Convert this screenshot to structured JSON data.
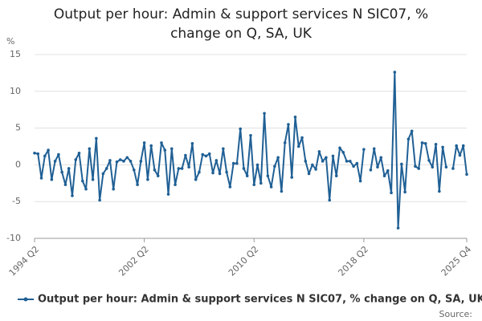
{
  "chart_data": {
    "type": "line",
    "title": "Output per hour: Admin & support services N SIC07, % change on Q, SA, UK",
    "y_label": "%",
    "source": "Source:",
    "categories": [
      "1994 Q2",
      null,
      null,
      null,
      null,
      null,
      null,
      null,
      null,
      null,
      null,
      null,
      null,
      null,
      null,
      null,
      null,
      null,
      null,
      null,
      null,
      null,
      null,
      null,
      null,
      null,
      null,
      null,
      null,
      null,
      null,
      null,
      "2002 Q2",
      null,
      null,
      null,
      null,
      null,
      null,
      null,
      null,
      null,
      null,
      null,
      null,
      null,
      null,
      null,
      null,
      null,
      null,
      null,
      null,
      null,
      null,
      null,
      null,
      null,
      null,
      null,
      null,
      null,
      null,
      null,
      "2010 Q2",
      null,
      null,
      null,
      null,
      null,
      null,
      null,
      null,
      null,
      null,
      null,
      null,
      null,
      null,
      null,
      null,
      null,
      null,
      null,
      null,
      null,
      null,
      null,
      null,
      null,
      null,
      null,
      null,
      null,
      null,
      null,
      "2018 Q2",
      null,
      null,
      null,
      null,
      null,
      null,
      null,
      null,
      null,
      null,
      null,
      null,
      null,
      null,
      null,
      null,
      null,
      null,
      null,
      null,
      null,
      null,
      null,
      null,
      null,
      null,
      null,
      null,
      null,
      "2025 Q4"
    ],
    "series": [
      {
        "name": "Output per hour: Admin & support services N SIC07, % change on Q, SA, UK",
        "color": "#206095",
        "values": [
          1.6,
          1.5,
          -1.8,
          1.2,
          2.0,
          -2.0,
          0.5,
          1.4,
          -1.0,
          -2.7,
          -0.5,
          -4.2,
          0.7,
          1.6,
          -2.2,
          -3.3,
          2.2,
          -2.0,
          3.6,
          -4.8,
          -1.2,
          -0.5,
          0.6,
          -3.3,
          0.4,
          0.7,
          0.5,
          1.0,
          0.5,
          -0.7,
          -2.7,
          0.5,
          3.0,
          -2.0,
          2.6,
          -0.7,
          -1.5,
          3.0,
          2.0,
          -4.0,
          2.2,
          -2.7,
          -0.5,
          -0.5,
          1.3,
          -0.3,
          2.9,
          -2.0,
          -1.0,
          1.4,
          1.2,
          1.5,
          -1.1,
          0.6,
          -1.2,
          2.2,
          -1.0,
          -3.0,
          0.2,
          0.2,
          4.9,
          -0.5,
          -1.5,
          4.0,
          -2.7,
          0.0,
          -2.5,
          7.0,
          -1.5,
          -3.0,
          -0.2,
          1.0,
          -3.6,
          3.0,
          5.5,
          -1.7,
          6.5,
          2.5,
          3.7,
          0.5,
          -1.2,
          0.0,
          -0.6,
          1.8,
          0.5,
          1.0,
          -4.8,
          1.2,
          -1.5,
          2.3,
          1.7,
          0.5,
          0.5,
          -0.2,
          0.2,
          -2.2,
          2.1,
          null,
          -0.7,
          2.2,
          -0.3,
          1.0,
          -1.5,
          -0.8,
          -3.8,
          12.6,
          -8.6,
          0.1,
          -3.7,
          3.5,
          4.6,
          -0.2,
          -0.5,
          3.0,
          2.9,
          0.6,
          -0.3,
          2.8,
          -3.6,
          2.4,
          -0.3,
          null,
          -0.5,
          2.6,
          1.3,
          2.6,
          -1.3
        ]
      }
    ],
    "ylim": [
      -10,
      15
    ],
    "yticks": [
      -10,
      -5,
      0,
      5,
      10,
      15
    ],
    "grid": true
  }
}
